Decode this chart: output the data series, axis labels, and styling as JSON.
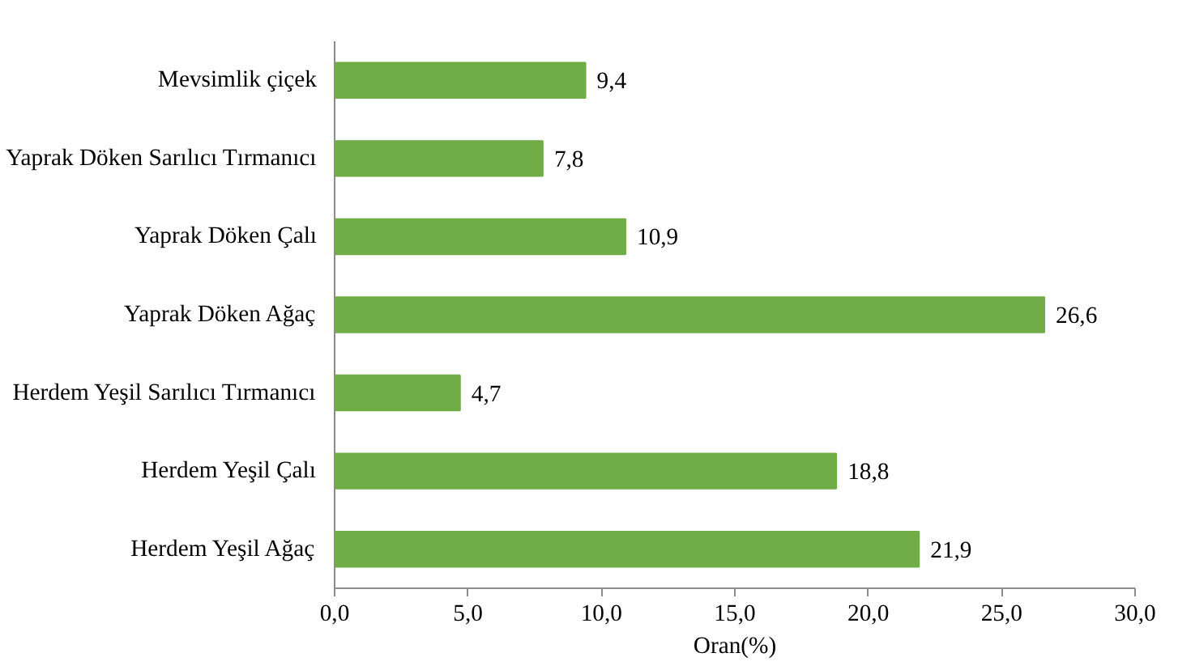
{
  "chart_data": {
    "type": "bar",
    "orientation": "horizontal",
    "xlabel": "Oran(%)",
    "categories": [
      "Mevsimlik çiçek",
      "Yaprak Döken Sarılıcı Tırmanıcı",
      "Yaprak Döken Çalı",
      "Yaprak Döken Ağaç",
      "Herdem Yeşil Sarılıcı Tırmanıcı",
      "Herdem Yeşil Çalı",
      "Herdem Yeşil Ağaç"
    ],
    "values": [
      9.4,
      7.8,
      10.9,
      26.6,
      4.7,
      18.8,
      21.9
    ],
    "value_labels": [
      "9,4",
      "7,8",
      "10,9",
      "26,6",
      "4,7",
      "18,8",
      "21,9"
    ],
    "color": "#70ad47",
    "xlim": [
      0,
      30
    ],
    "xticks": [
      {
        "value": 0,
        "label": "0,0"
      },
      {
        "value": 5,
        "label": "5,0"
      },
      {
        "value": 10,
        "label": "10,0"
      },
      {
        "value": 15,
        "label": "15,0"
      },
      {
        "value": 20,
        "label": "20,0"
      },
      {
        "value": 25,
        "label": "25,0"
      },
      {
        "value": 30,
        "label": "30,0"
      }
    ],
    "grid": false
  }
}
